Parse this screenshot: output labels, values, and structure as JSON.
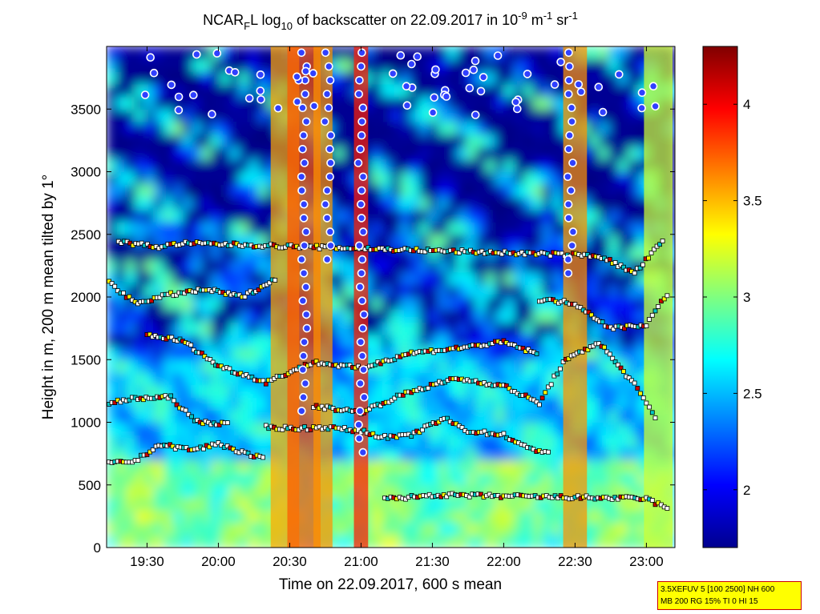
{
  "chart_data": {
    "type": "heatmap",
    "title": {
      "prefix": "NCAR",
      "sub1": "F",
      "mid": "L log",
      "sub2": "10",
      "rest": " of backscatter on 22.09.2017 in 10",
      "sup1": "-9",
      "unit1": " m",
      "sup2": "-1",
      "unit2": " sr",
      "sup3": "-1"
    },
    "xlabel": "Time on 22.09.2017, 600 s mean",
    "ylabel": "Height in m, 200 m mean tilted by 1°",
    "x_ticks": [
      "19:30",
      "20:00",
      "20:30",
      "21:00",
      "21:30",
      "22:00",
      "22:30",
      "23:00"
    ],
    "y_ticks": [
      "0",
      "500",
      "1000",
      "1500",
      "2000",
      "2500",
      "3000",
      "3500"
    ],
    "colorbar_ticks": [
      "2",
      "2.5",
      "3",
      "3.5",
      "4"
    ],
    "xlim": [
      "19:13",
      "23:12"
    ],
    "ylim": [
      0,
      4000
    ],
    "clim": [
      1.7,
      4.3
    ],
    "colormap": "jet",
    "settings": [
      "3.5XEFUV 5 [100 2500] NH 600",
      "MB 200 RG 15% TI 0 HI 15"
    ],
    "plumes": [
      {
        "t": "20:28",
        "half_width_min": 6,
        "value": 3.55
      },
      {
        "t": "20:36",
        "half_width_min": 7,
        "value": 3.75
      },
      {
        "t": "20:44",
        "half_width_min": 4,
        "value": 3.6
      },
      {
        "t": "21:00",
        "half_width_min": 3,
        "value": 3.9
      },
      {
        "t": "22:30",
        "half_width_min": 5,
        "value": 3.6
      },
      {
        "t": "23:05",
        "half_width_min": 6,
        "value": 3.2
      }
    ],
    "cloud_layers": [
      {
        "name": "layer-700",
        "points": [
          [
            "19:14",
            670
          ],
          [
            "19:25",
            690
          ],
          [
            "19:35",
            820
          ],
          [
            "19:50",
            780
          ],
          [
            "20:00",
            830
          ],
          [
            "20:10",
            760
          ],
          [
            "20:20",
            700
          ]
        ]
      },
      {
        "name": "layer-1000",
        "points": [
          [
            "20:20",
            960
          ],
          [
            "20:35",
            950
          ],
          [
            "20:45",
            960
          ],
          [
            "21:00",
            930
          ],
          [
            "21:10",
            880
          ],
          [
            "21:20",
            890
          ],
          [
            "21:35",
            1030
          ],
          [
            "21:45",
            930
          ],
          [
            "22:00",
            900
          ],
          [
            "22:10",
            790
          ],
          [
            "22:20",
            760
          ]
        ]
      },
      {
        "name": "layer-1150",
        "points": [
          [
            "19:14",
            1150
          ],
          [
            "19:25",
            1190
          ],
          [
            "19:40",
            1200
          ],
          [
            "19:50",
            1010
          ],
          [
            "20:05",
            980
          ]
        ]
      },
      {
        "name": "layer-1250",
        "points": [
          [
            "20:40",
            1130
          ],
          [
            "21:00",
            1080
          ],
          [
            "21:20",
            1240
          ],
          [
            "21:40",
            1350
          ],
          [
            "22:00",
            1290
          ],
          [
            "22:15",
            1150
          ],
          [
            "22:25",
            1480
          ],
          [
            "22:40",
            1640
          ],
          [
            "22:55",
            1300
          ],
          [
            "23:05",
            1000
          ]
        ]
      },
      {
        "name": "layer-1500",
        "points": [
          [
            "19:30",
            1700
          ],
          [
            "19:45",
            1650
          ],
          [
            "20:00",
            1450
          ],
          [
            "20:20",
            1320
          ],
          [
            "20:40",
            1480
          ],
          [
            "21:00",
            1430
          ],
          [
            "21:20",
            1550
          ],
          [
            "21:40",
            1590
          ],
          [
            "22:00",
            1640
          ],
          [
            "22:15",
            1540
          ]
        ]
      },
      {
        "name": "layer-2000",
        "points": [
          [
            "19:14",
            2120
          ],
          [
            "19:25",
            1950
          ],
          [
            "19:40",
            2020
          ],
          [
            "19:55",
            2060
          ],
          [
            "20:10",
            2000
          ],
          [
            "20:25",
            2150
          ]
        ]
      },
      {
        "name": "layer-2000b",
        "points": [
          [
            "22:15",
            1980
          ],
          [
            "22:30",
            1950
          ],
          [
            "22:45",
            1750
          ],
          [
            "23:00",
            1780
          ],
          [
            "23:10",
            2060
          ]
        ]
      },
      {
        "name": "layer-2400",
        "points": [
          [
            "19:18",
            2440
          ],
          [
            "19:35",
            2400
          ],
          [
            "19:45",
            2430
          ],
          [
            "22:40",
            2330
          ],
          [
            "22:55",
            2190
          ],
          [
            "23:08",
            2470
          ]
        ]
      },
      {
        "name": "layer-400",
        "points": [
          [
            "21:10",
            390
          ],
          [
            "21:20",
            400
          ],
          [
            "21:30",
            420
          ],
          [
            "23:00",
            390
          ],
          [
            "23:10",
            300
          ]
        ]
      }
    ],
    "precip_streaks": [
      {
        "t": "20:36",
        "top": 3950,
        "bottom": 1000
      },
      {
        "t": "20:46",
        "top": 3950,
        "bottom": 2300
      },
      {
        "t": "21:00",
        "top": 3950,
        "bottom": 700
      },
      {
        "t": "22:28",
        "top": 3950,
        "bottom": 2100
      }
    ]
  }
}
